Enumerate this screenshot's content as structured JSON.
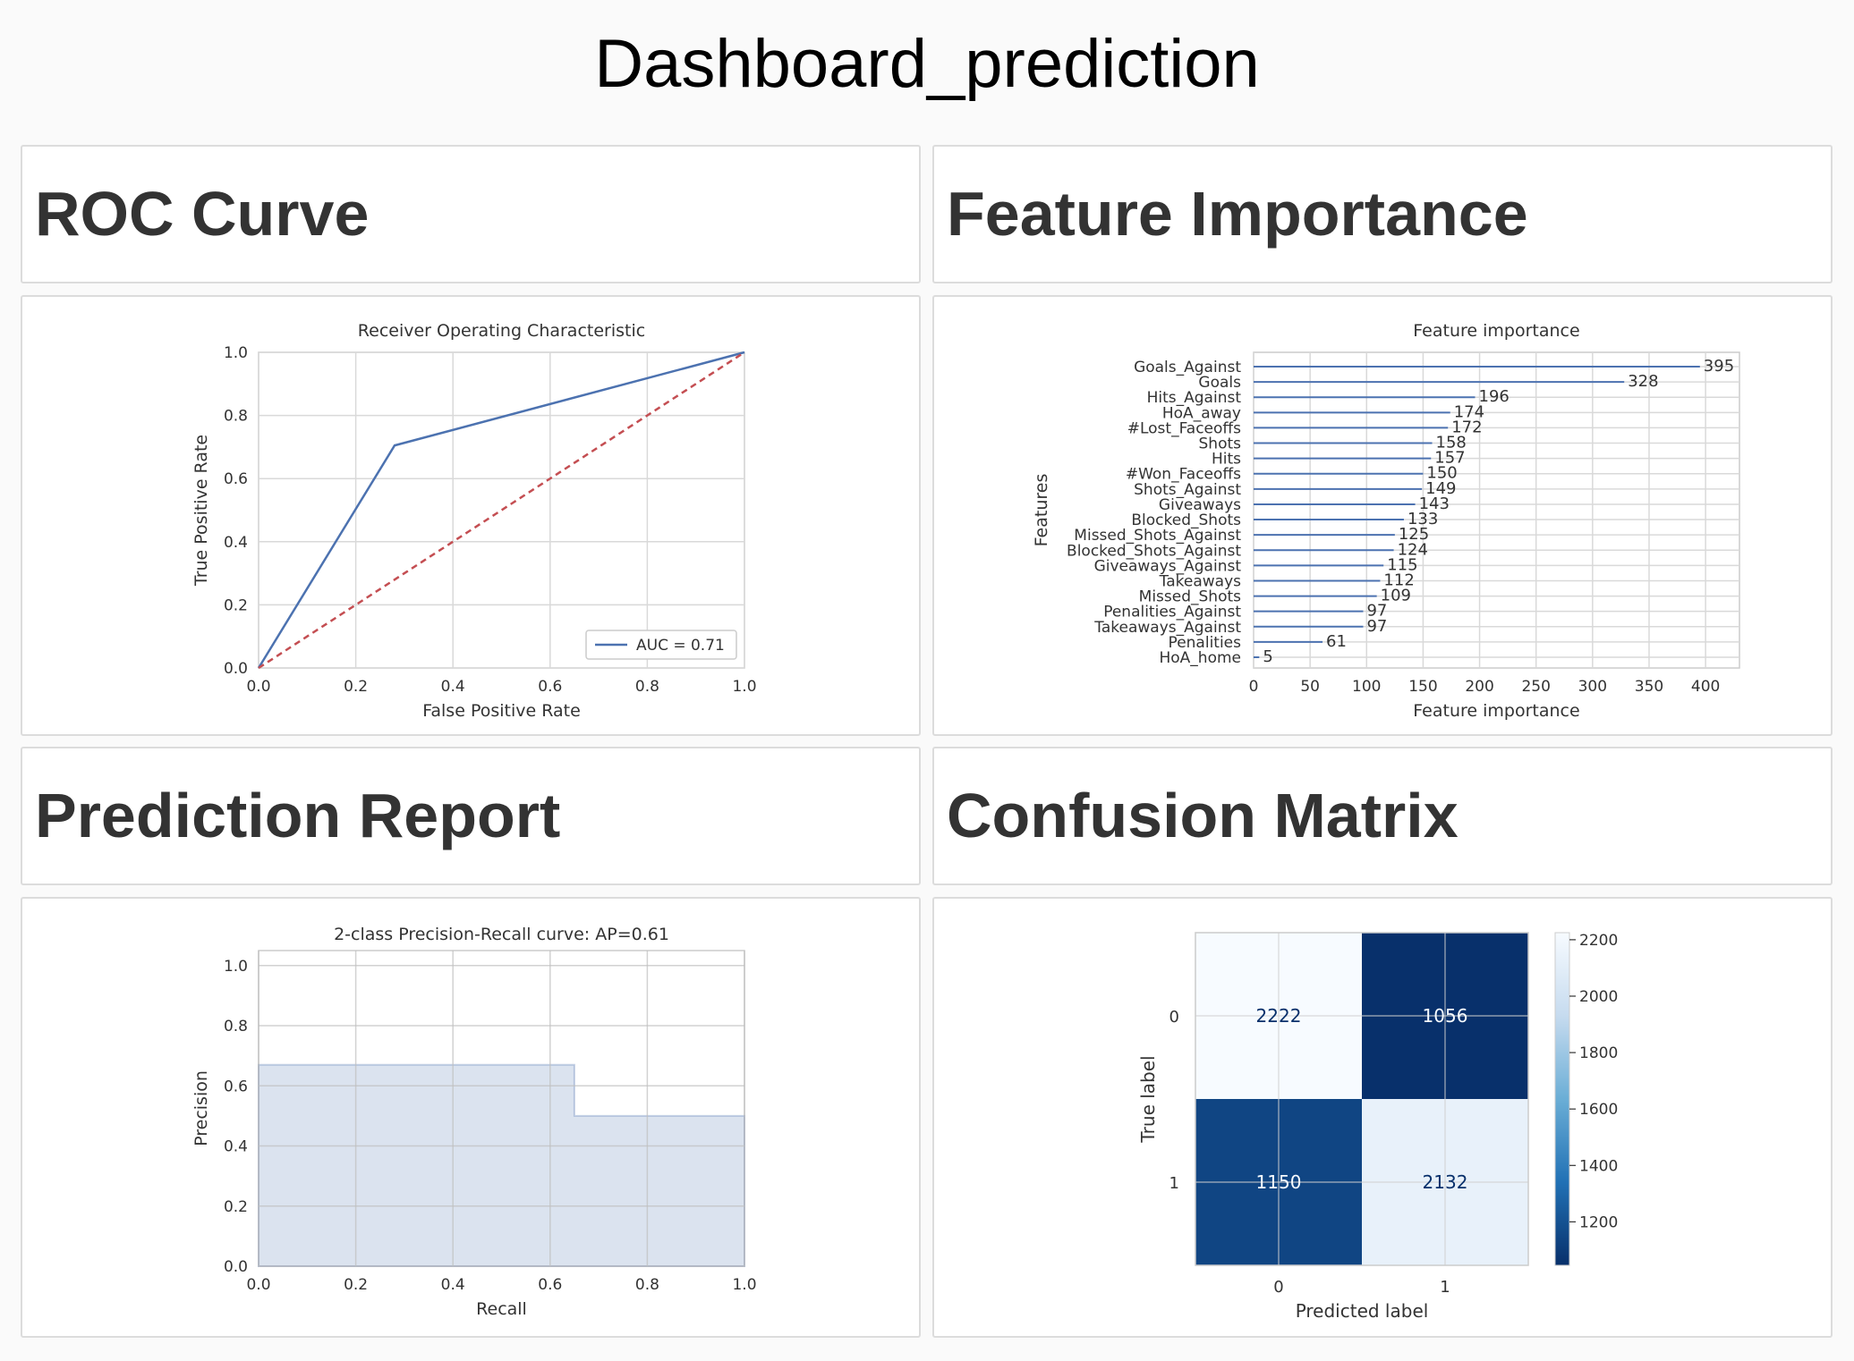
{
  "page_title": "Dashboard_prediction",
  "cards": {
    "roc_header": "ROC Curve",
    "features_header": "Feature Importance",
    "report_header": "Prediction Report",
    "confusion_header": "Confusion Matrix"
  },
  "chart_data": [
    {
      "type": "line",
      "title": "Receiver Operating Characteristic",
      "xlabel": "False Positive Rate",
      "ylabel": "True Positive Rate",
      "xlim": [
        0,
        1
      ],
      "ylim": [
        0,
        1
      ],
      "xticks": [
        "0.0",
        "0.2",
        "0.4",
        "0.6",
        "0.8",
        "1.0"
      ],
      "yticks": [
        "0.0",
        "0.2",
        "0.4",
        "0.6",
        "0.8",
        "1.0"
      ],
      "grid": true,
      "legend": "lower right",
      "series": [
        {
          "name": "AUC = 0.71",
          "x": [
            0,
            0.28,
            1
          ],
          "y": [
            0,
            0.705,
            1
          ],
          "color": "#4c72b0",
          "style": "solid"
        },
        {
          "x": [
            0,
            1
          ],
          "y": [
            0,
            1
          ],
          "color": "#c44e52",
          "style": "dashed"
        }
      ]
    },
    {
      "type": "bar",
      "orientation": "horizontal",
      "title": "Feature importance",
      "xlabel": "Feature importance",
      "ylabel": "Features",
      "xlim": [
        0,
        430
      ],
      "xticks": [
        "0",
        "50",
        "100",
        "150",
        "200",
        "250",
        "300",
        "350",
        "400"
      ],
      "grid": true,
      "color": "#4c72b0",
      "categories": [
        "Goals_Against",
        "Goals",
        "Hits_Against",
        "HoA_away",
        "#Lost_Faceoffs",
        "Shots",
        "Hits",
        "#Won_Faceoffs",
        "Shots_Against",
        "Giveaways",
        "Blocked_Shots",
        "Missed_Shots_Against",
        "Blocked_Shots_Against",
        "Giveaways_Against",
        "Takeaways",
        "Missed_Shots",
        "Penalities_Against",
        "Takeaways_Against",
        "Penalities",
        "HoA_home"
      ],
      "values": [
        395,
        328,
        196,
        174,
        172,
        158,
        157,
        150,
        149,
        143,
        133,
        125,
        124,
        115,
        112,
        109,
        97,
        97,
        61,
        5
      ]
    },
    {
      "type": "area",
      "title": "2-class Precision-Recall curve: AP=0.61",
      "xlabel": "Recall",
      "ylabel": "Precision",
      "xlim": [
        0,
        1
      ],
      "ylim": [
        0,
        1.05
      ],
      "xticks": [
        "0.0",
        "0.2",
        "0.4",
        "0.6",
        "0.8",
        "1.0"
      ],
      "yticks": [
        "0.0",
        "0.2",
        "0.4",
        "0.6",
        "0.8",
        "1.0"
      ],
      "grid": true,
      "step": "post",
      "color": "#4c72b0",
      "x": [
        0,
        0.65,
        0.65,
        1.0
      ],
      "y": [
        0.67,
        0.67,
        0.5,
        0.5
      ]
    },
    {
      "type": "heatmap",
      "xlabel": "Predicted label",
      "ylabel": "True label",
      "x_categories": [
        "0",
        "1"
      ],
      "y_categories": [
        "0",
        "1"
      ],
      "values": [
        [
          2222,
          1056
        ],
        [
          1150,
          2132
        ]
      ],
      "colormap": "Blues",
      "colorbar_ticks": [
        "2200",
        "2000",
        "1800",
        "1600",
        "1400",
        "1200"
      ],
      "colorbar_range": [
        1056,
        2222
      ]
    }
  ]
}
